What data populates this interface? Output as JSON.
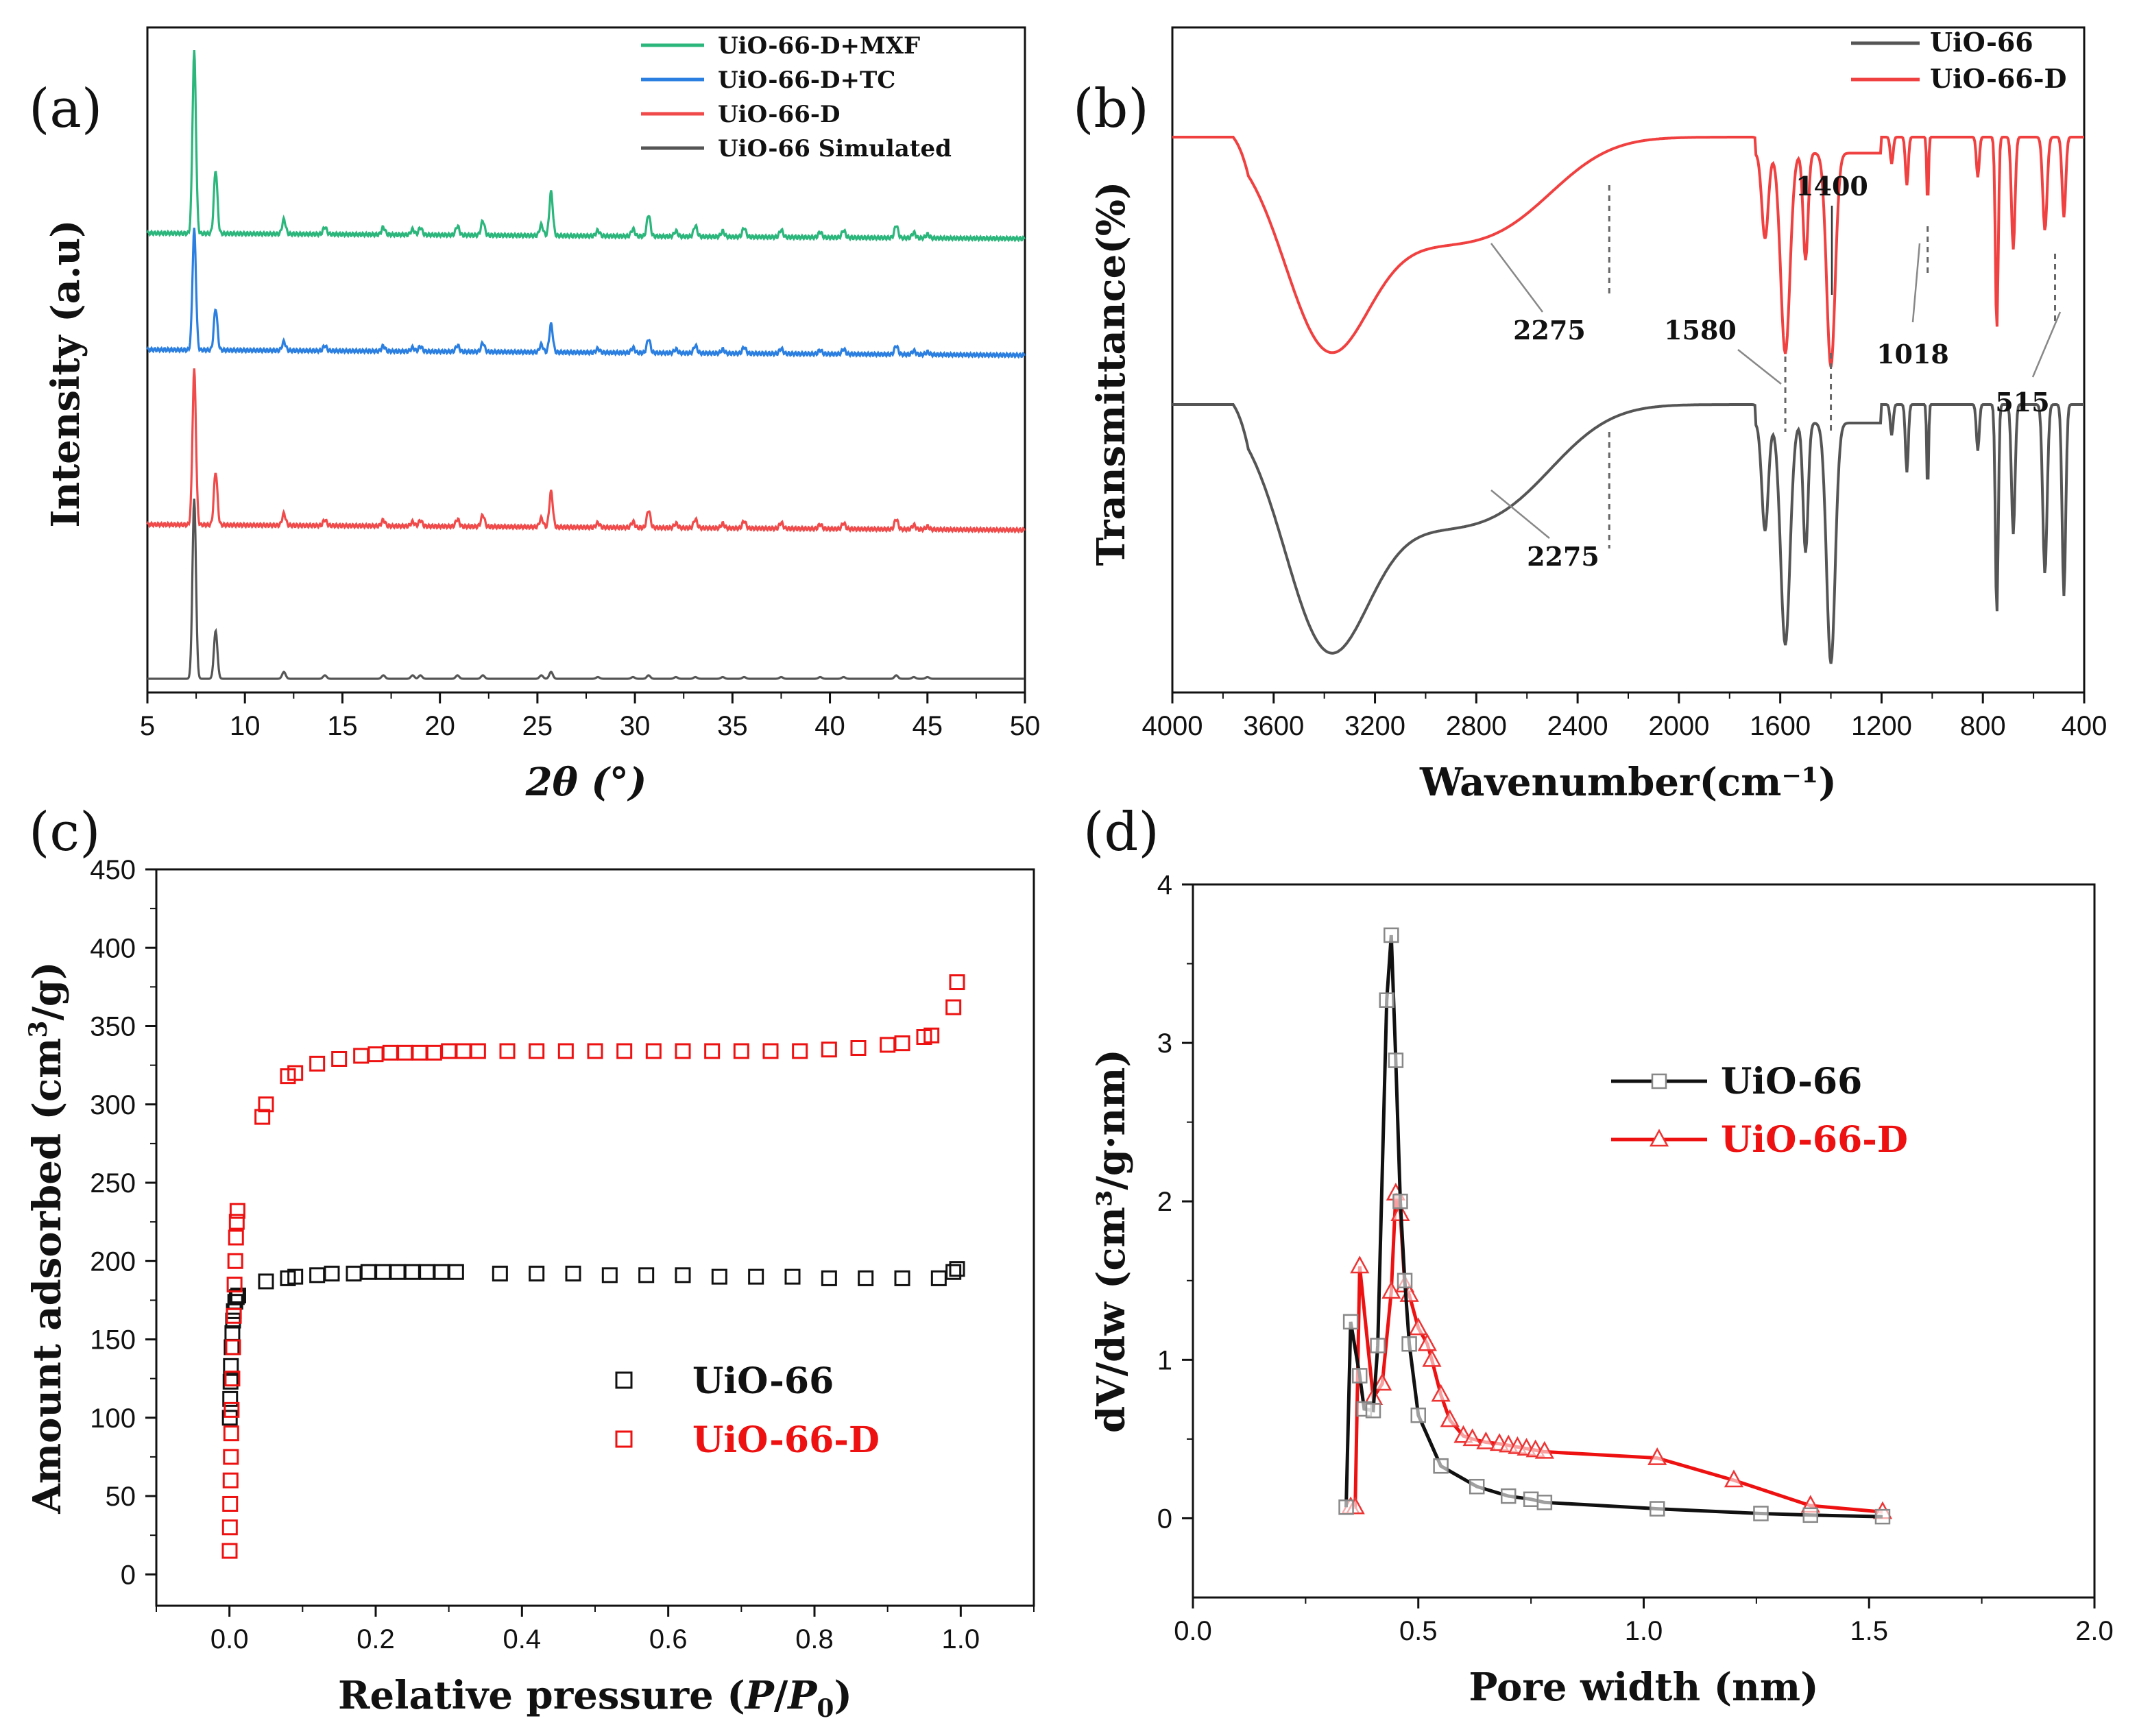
{
  "panels": {
    "a": "(a)",
    "b": "(b)",
    "c": "(c)",
    "d": "(d)"
  },
  "chart_data": [
    {
      "id": "a",
      "type": "line",
      "title": "",
      "xlabel": "2θ (°)",
      "ylabel": "Intensity (a.u)",
      "xlim": [
        5,
        50
      ],
      "xticks": [
        5,
        10,
        15,
        20,
        25,
        30,
        35,
        40,
        45,
        50
      ],
      "y_ticks_shown": false,
      "legend_position": "top-right",
      "peaks_2theta": [
        7.4,
        8.5,
        12.0,
        14.1,
        17.1,
        18.6,
        19.0,
        20.9,
        22.2,
        25.2,
        25.7,
        28.1,
        29.9,
        30.7,
        32.1,
        33.1,
        34.5,
        35.6,
        37.5,
        39.5,
        40.7,
        43.4,
        44.3,
        45.0
      ],
      "series": [
        {
          "name": "UiO-66-D+MXF",
          "color": "#2bb67c",
          "offset": 3,
          "relative_peak_heights": [
            1.0,
            0.35,
            0.08,
            0.04,
            0.04,
            0.03,
            0.04,
            0.05,
            0.08,
            0.06,
            0.24,
            0.03,
            0.04,
            0.12,
            0.03,
            0.06,
            0.03,
            0.05,
            0.04,
            0.03,
            0.04,
            0.07,
            0.03,
            0.02
          ]
        },
        {
          "name": "UiO-66-D+TC",
          "color": "#2a7fe0",
          "offset": 2,
          "relative_peak_heights": [
            0.95,
            0.33,
            0.07,
            0.04,
            0.04,
            0.03,
            0.04,
            0.05,
            0.07,
            0.06,
            0.22,
            0.03,
            0.04,
            0.11,
            0.03,
            0.06,
            0.03,
            0.05,
            0.04,
            0.03,
            0.04,
            0.07,
            0.03,
            0.02
          ]
        },
        {
          "name": "UiO-66-D",
          "color": "#f04a4a",
          "offset": 1,
          "relative_peak_heights": [
            1.05,
            0.36,
            0.08,
            0.04,
            0.04,
            0.03,
            0.04,
            0.05,
            0.08,
            0.06,
            0.24,
            0.03,
            0.04,
            0.12,
            0.03,
            0.06,
            0.03,
            0.05,
            0.04,
            0.03,
            0.04,
            0.07,
            0.03,
            0.02
          ]
        },
        {
          "name": "UiO-66 Simulated",
          "color": "#555555",
          "offset": 0,
          "relative_peak_heights": [
            1.05,
            0.28,
            0.04,
            0.02,
            0.02,
            0.02,
            0.02,
            0.02,
            0.02,
            0.02,
            0.04,
            0.01,
            0.01,
            0.02,
            0.01,
            0.01,
            0.01,
            0.01,
            0.01,
            0.01,
            0.01,
            0.02,
            0.01,
            0.01
          ]
        }
      ]
    },
    {
      "id": "b",
      "type": "line",
      "title": "",
      "xlabel": "Wavenumber(cm⁻¹)",
      "ylabel": "Transmittance(%)",
      "xlim": [
        4000,
        400
      ],
      "xticks": [
        4000,
        3600,
        3200,
        2800,
        2400,
        2000,
        1600,
        1200,
        800,
        400
      ],
      "y_ticks_shown": false,
      "legend_position": "top-right",
      "series": [
        {
          "name": "UiO-66",
          "color": "#555555"
        },
        {
          "name": "UiO-66-D",
          "color": "#f04040"
        }
      ],
      "annotations_red": [
        "2275",
        "1580",
        "1400",
        "1018",
        "515"
      ],
      "annotations_black": [
        "2275"
      ],
      "marker_wavenumbers": [
        2275,
        1580,
        1400,
        1018,
        515
      ]
    },
    {
      "id": "c",
      "type": "scatter",
      "title": "",
      "xlabel_main": "Relative pressure (",
      "xlabel_p": "P",
      "xlabel_slash": "/",
      "xlabel_p0": "P",
      "xlabel_sub": "0",
      "xlabel_close": ")",
      "ylabel_main": "Amount adsorbed (cm",
      "ylabel_sup": "3",
      "ylabel_end": "/g)",
      "xlim": [
        -0.1,
        1.1
      ],
      "ylim": [
        -20,
        450
      ],
      "xticks": [
        0.0,
        0.2,
        0.4,
        0.6,
        0.8,
        1.0
      ],
      "xtick_labels": [
        "0.0",
        "0.2",
        "0.4",
        "0.6",
        "0.8",
        "1.0"
      ],
      "yticks": [
        0,
        50,
        100,
        150,
        200,
        250,
        300,
        350,
        400,
        450
      ],
      "legend_position": "lower-right",
      "series": [
        {
          "name": "UiO-66",
          "color": "#111111",
          "x": [
            0.0005,
            0.001,
            0.0015,
            0.002,
            0.003,
            0.004,
            0.005,
            0.006,
            0.008,
            0.01,
            0.012,
            0.05,
            0.08,
            0.09,
            0.12,
            0.14,
            0.17,
            0.19,
            0.21,
            0.23,
            0.25,
            0.27,
            0.29,
            0.31,
            0.37,
            0.42,
            0.47,
            0.52,
            0.57,
            0.62,
            0.67,
            0.72,
            0.77,
            0.82,
            0.87,
            0.92,
            0.97,
            0.99,
            0.995
          ],
          "y": [
            100,
            112,
            123,
            133,
            145,
            154,
            162,
            168,
            174,
            177,
            178,
            187,
            189,
            190,
            191,
            192,
            192,
            193,
            193,
            193,
            193,
            193,
            193,
            193,
            192,
            192,
            192,
            191,
            191,
            191,
            190,
            190,
            190,
            189,
            189,
            189,
            189,
            193,
            195
          ]
        },
        {
          "name": "UiO-66-D",
          "color": "#ee1111",
          "x": [
            0.0003,
            0.0006,
            0.001,
            0.0015,
            0.002,
            0.0025,
            0.003,
            0.004,
            0.005,
            0.006,
            0.007,
            0.008,
            0.009,
            0.01,
            0.011,
            0.045,
            0.05,
            0.08,
            0.09,
            0.12,
            0.15,
            0.18,
            0.2,
            0.22,
            0.24,
            0.26,
            0.28,
            0.3,
            0.32,
            0.34,
            0.38,
            0.42,
            0.46,
            0.5,
            0.54,
            0.58,
            0.62,
            0.66,
            0.7,
            0.74,
            0.78,
            0.82,
            0.86,
            0.9,
            0.92,
            0.95,
            0.96,
            0.99,
            0.995
          ],
          "y": [
            15,
            30,
            45,
            60,
            75,
            90,
            105,
            125,
            145,
            165,
            185,
            200,
            215,
            225,
            232,
            292,
            300,
            318,
            320,
            326,
            329,
            331,
            332,
            333,
            333,
            333,
            333,
            334,
            334,
            334,
            334,
            334,
            334,
            334,
            334,
            334,
            334,
            334,
            334,
            334,
            334,
            335,
            336,
            338,
            339,
            343,
            344,
            362,
            378
          ]
        }
      ]
    },
    {
      "id": "d",
      "type": "line",
      "title": "",
      "xlabel": "Pore width (nm)",
      "ylabel": "dV/dw (cm³/g·nm)",
      "xlim": [
        0.0,
        2.0
      ],
      "ylim": [
        -0.5,
        4
      ],
      "xticks": [
        0.0,
        0.5,
        1.0,
        1.5,
        2.0
      ],
      "xtick_labels": [
        "0.0",
        "0.5",
        "1.0",
        "1.5",
        "2.0"
      ],
      "yticks": [
        0,
        1,
        2,
        3,
        4
      ],
      "legend_position": "center-right",
      "series": [
        {
          "name": "UiO-66",
          "color": "#111111",
          "marker": "square",
          "x": [
            0.34,
            0.35,
            0.37,
            0.38,
            0.4,
            0.41,
            0.43,
            0.44,
            0.45,
            0.46,
            0.47,
            0.48,
            0.5,
            0.55,
            0.63,
            0.7,
            0.75,
            0.78,
            1.03,
            1.26,
            1.37,
            1.53
          ],
          "y": [
            0.07,
            1.24,
            0.9,
            0.69,
            0.68,
            1.09,
            3.27,
            3.68,
            2.89,
            2.0,
            1.5,
            1.1,
            0.65,
            0.33,
            0.2,
            0.14,
            0.12,
            0.1,
            0.06,
            0.03,
            0.02,
            0.01
          ]
        },
        {
          "name": "UiO-66-D",
          "color": "#ee1111",
          "marker": "triangle",
          "x": [
            0.35,
            0.36,
            0.37,
            0.4,
            0.42,
            0.44,
            0.45,
            0.46,
            0.47,
            0.48,
            0.5,
            0.52,
            0.53,
            0.55,
            0.57,
            0.6,
            0.62,
            0.65,
            0.68,
            0.7,
            0.72,
            0.74,
            0.76,
            0.78,
            1.03,
            1.2,
            1.37,
            1.53
          ],
          "y": [
            0.07,
            0.07,
            1.59,
            0.76,
            0.85,
            1.43,
            2.05,
            1.92,
            1.47,
            1.41,
            1.2,
            1.1,
            1.0,
            0.78,
            0.62,
            0.52,
            0.5,
            0.48,
            0.47,
            0.46,
            0.45,
            0.44,
            0.43,
            0.42,
            0.38,
            0.24,
            0.08,
            0.04
          ]
        }
      ]
    }
  ]
}
